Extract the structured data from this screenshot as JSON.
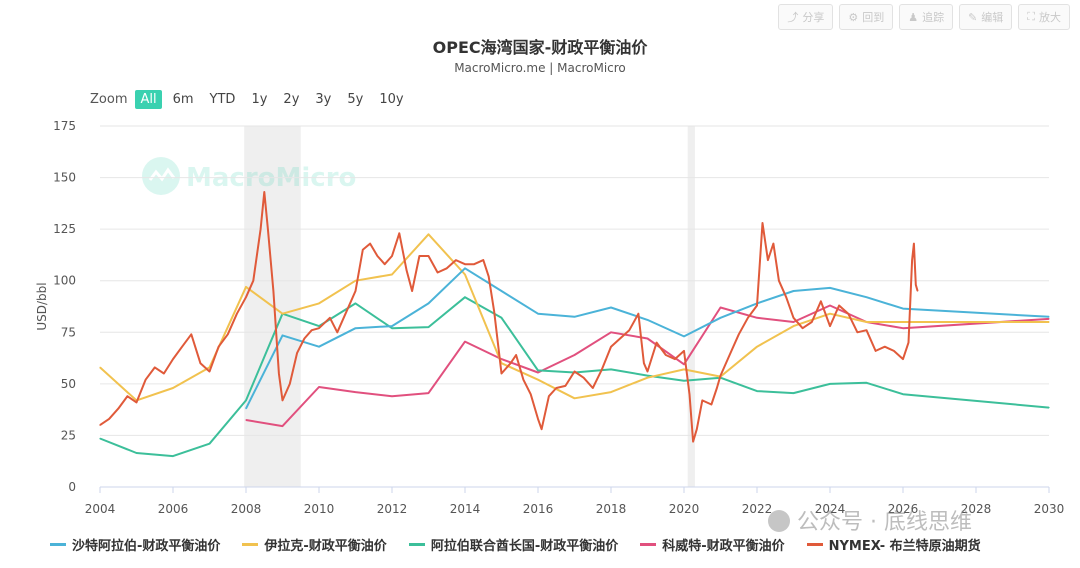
{
  "toolbar": {
    "buttons": [
      {
        "label": "分享",
        "icon": "share-icon"
      },
      {
        "label": "回到",
        "icon": "gear-icon"
      },
      {
        "label": "追踪",
        "icon": "user-icon"
      },
      {
        "label": "编辑",
        "icon": "pencil-icon"
      },
      {
        "label": "放大",
        "icon": "expand-icon"
      }
    ]
  },
  "zoom": {
    "label": "Zoom",
    "options": [
      "All",
      "6m",
      "YTD",
      "1y",
      "2y",
      "3y",
      "5y",
      "10y"
    ],
    "active": "All"
  },
  "watermark": "MacroMicro",
  "footer_watermark": "公众号 · 底线思维",
  "chart_data": {
    "type": "line",
    "title": "OPEC海湾国家-财政平衡油价",
    "subtitle": "MacroMicro.me | MacroMicro",
    "ylabel": "USD/bbl",
    "xlabel": "",
    "xlim": [
      2004,
      2030
    ],
    "ylim": [
      0,
      175
    ],
    "xticks": [
      2004,
      2006,
      2008,
      2010,
      2012,
      2014,
      2016,
      2018,
      2020,
      2022,
      2024,
      2026,
      2028,
      2030
    ],
    "yticks": [
      0,
      25,
      50,
      75,
      100,
      125,
      150,
      175
    ],
    "grid": true,
    "legend": "bottom",
    "shaded_periods": [
      [
        2007.95,
        2009.5
      ],
      [
        2020.1,
        2020.3
      ]
    ],
    "series": [
      {
        "name": "沙特阿拉伯-财政平衡油价",
        "color": "#4bb3d8",
        "points": [
          [
            2008,
            38
          ],
          [
            2009,
            73.5
          ],
          [
            2010,
            68
          ],
          [
            2011,
            77
          ],
          [
            2012,
            78
          ],
          [
            2013,
            89
          ],
          [
            2014,
            106
          ],
          [
            2015,
            95
          ],
          [
            2016,
            84
          ],
          [
            2017,
            82.5
          ],
          [
            2018,
            87
          ],
          [
            2019,
            81
          ],
          [
            2020,
            73
          ],
          [
            2021,
            82
          ],
          [
            2022,
            89
          ],
          [
            2023,
            95
          ],
          [
            2024,
            96.5
          ],
          [
            2025,
            92
          ],
          [
            2026,
            86.5
          ],
          [
            2030,
            82.5
          ]
        ]
      },
      {
        "name": "伊拉克-财政平衡油价",
        "color": "#f1c24f",
        "points": [
          [
            2004,
            58
          ],
          [
            2005,
            42
          ],
          [
            2006,
            48
          ],
          [
            2007,
            58
          ],
          [
            2008,
            97
          ],
          [
            2009,
            84
          ],
          [
            2010,
            89
          ],
          [
            2011,
            100
          ],
          [
            2012,
            103
          ],
          [
            2013,
            122.5
          ],
          [
            2014,
            103
          ],
          [
            2015,
            60
          ],
          [
            2016,
            52
          ],
          [
            2017,
            43
          ],
          [
            2018,
            46
          ],
          [
            2019,
            53
          ],
          [
            2020,
            57
          ],
          [
            2021,
            53.5
          ],
          [
            2022,
            68
          ],
          [
            2023,
            78
          ],
          [
            2024,
            84
          ],
          [
            2025,
            80
          ],
          [
            2026,
            80
          ],
          [
            2030,
            80
          ]
        ]
      },
      {
        "name": "阿拉伯联合酋长国-财政平衡油价",
        "color": "#3cbf9a",
        "points": [
          [
            2004,
            23.5
          ],
          [
            2005,
            16.5
          ],
          [
            2006,
            15
          ],
          [
            2007,
            21
          ],
          [
            2008,
            42
          ],
          [
            2009,
            84
          ],
          [
            2010,
            78
          ],
          [
            2011,
            89
          ],
          [
            2012,
            77
          ],
          [
            2013,
            77.5
          ],
          [
            2014,
            92
          ],
          [
            2015,
            82
          ],
          [
            2016,
            56.5
          ],
          [
            2017,
            55.5
          ],
          [
            2018,
            57
          ],
          [
            2019,
            54
          ],
          [
            2020,
            51.5
          ],
          [
            2021,
            53
          ],
          [
            2022,
            46.5
          ],
          [
            2023,
            45.5
          ],
          [
            2024,
            50
          ],
          [
            2025,
            50.5
          ],
          [
            2026,
            45
          ],
          [
            2030,
            38.5
          ]
        ]
      },
      {
        "name": "科威特-财政平衡油价",
        "color": "#e1507e",
        "points": [
          [
            2008,
            32.5
          ],
          [
            2009,
            29.5
          ],
          [
            2010,
            48.5
          ],
          [
            2011,
            46
          ],
          [
            2012,
            44
          ],
          [
            2013,
            45.5
          ],
          [
            2014,
            70.5
          ],
          [
            2015,
            62
          ],
          [
            2016,
            55.5
          ],
          [
            2017,
            64
          ],
          [
            2018,
            75
          ],
          [
            2019,
            72
          ],
          [
            2020,
            59.5
          ],
          [
            2021,
            87
          ],
          [
            2022,
            82
          ],
          [
            2023,
            80
          ],
          [
            2024,
            88
          ],
          [
            2025,
            80
          ],
          [
            2026,
            77
          ],
          [
            2030,
            81.5
          ]
        ]
      },
      {
        "name": "NYMEX- 布兰特原油期货",
        "color": "#e05a3a",
        "points": [
          [
            2004,
            30
          ],
          [
            2004.25,
            33
          ],
          [
            2004.5,
            38
          ],
          [
            2004.75,
            44
          ],
          [
            2005,
            41
          ],
          [
            2005.25,
            52
          ],
          [
            2005.5,
            58
          ],
          [
            2005.75,
            55
          ],
          [
            2006,
            62
          ],
          [
            2006.25,
            68
          ],
          [
            2006.5,
            74
          ],
          [
            2006.75,
            60
          ],
          [
            2007,
            56
          ],
          [
            2007.25,
            68
          ],
          [
            2007.5,
            74
          ],
          [
            2007.75,
            84
          ],
          [
            2008,
            92
          ],
          [
            2008.2,
            100
          ],
          [
            2008.4,
            125
          ],
          [
            2008.5,
            143
          ],
          [
            2008.6,
            125
          ],
          [
            2008.75,
            95
          ],
          [
            2008.9,
            55
          ],
          [
            2009,
            42
          ],
          [
            2009.2,
            50
          ],
          [
            2009.4,
            65
          ],
          [
            2009.6,
            72
          ],
          [
            2009.8,
            76
          ],
          [
            2010,
            77
          ],
          [
            2010.3,
            82
          ],
          [
            2010.5,
            75
          ],
          [
            2010.75,
            85
          ],
          [
            2011,
            95
          ],
          [
            2011.2,
            115
          ],
          [
            2011.4,
            118
          ],
          [
            2011.6,
            112
          ],
          [
            2011.8,
            108
          ],
          [
            2012,
            112
          ],
          [
            2012.2,
            123
          ],
          [
            2012.4,
            105
          ],
          [
            2012.55,
            95
          ],
          [
            2012.75,
            112
          ],
          [
            2013,
            112
          ],
          [
            2013.25,
            104
          ],
          [
            2013.5,
            106
          ],
          [
            2013.75,
            110
          ],
          [
            2014,
            108
          ],
          [
            2014.25,
            108
          ],
          [
            2014.5,
            110
          ],
          [
            2014.65,
            102
          ],
          [
            2014.8,
            85
          ],
          [
            2015,
            55
          ],
          [
            2015.25,
            60
          ],
          [
            2015.4,
            64
          ],
          [
            2015.6,
            52
          ],
          [
            2015.8,
            45
          ],
          [
            2016,
            33
          ],
          [
            2016.1,
            28
          ],
          [
            2016.3,
            44
          ],
          [
            2016.5,
            48
          ],
          [
            2016.75,
            49
          ],
          [
            2017,
            56
          ],
          [
            2017.25,
            53
          ],
          [
            2017.5,
            48
          ],
          [
            2017.75,
            57
          ],
          [
            2018,
            68
          ],
          [
            2018.25,
            72
          ],
          [
            2018.5,
            76
          ],
          [
            2018.75,
            84
          ],
          [
            2018.9,
            60
          ],
          [
            2019,
            56
          ],
          [
            2019.25,
            70
          ],
          [
            2019.5,
            64
          ],
          [
            2019.75,
            62
          ],
          [
            2020,
            66
          ],
          [
            2020.15,
            45
          ],
          [
            2020.25,
            22
          ],
          [
            2020.35,
            28
          ],
          [
            2020.5,
            42
          ],
          [
            2020.75,
            40
          ],
          [
            2020.9,
            48
          ],
          [
            2021,
            54
          ],
          [
            2021.25,
            64
          ],
          [
            2021.5,
            74
          ],
          [
            2021.75,
            82
          ],
          [
            2022,
            88
          ],
          [
            2022.15,
            128
          ],
          [
            2022.3,
            110
          ],
          [
            2022.45,
            118
          ],
          [
            2022.6,
            100
          ],
          [
            2022.8,
            92
          ],
          [
            2023,
            82
          ],
          [
            2023.25,
            77
          ],
          [
            2023.5,
            80
          ],
          [
            2023.75,
            90
          ],
          [
            2024,
            78
          ],
          [
            2024.25,
            88
          ],
          [
            2024.5,
            84
          ],
          [
            2024.75,
            75
          ],
          [
            2025,
            76
          ],
          [
            2025.25,
            66
          ],
          [
            2025.5,
            68
          ],
          [
            2025.75,
            66
          ],
          [
            2026,
            62
          ],
          [
            2026.15,
            70
          ],
          [
            2026.25,
            110
          ],
          [
            2026.3,
            118
          ],
          [
            2026.35,
            98
          ],
          [
            2026.4,
            95
          ]
        ]
      }
    ]
  }
}
